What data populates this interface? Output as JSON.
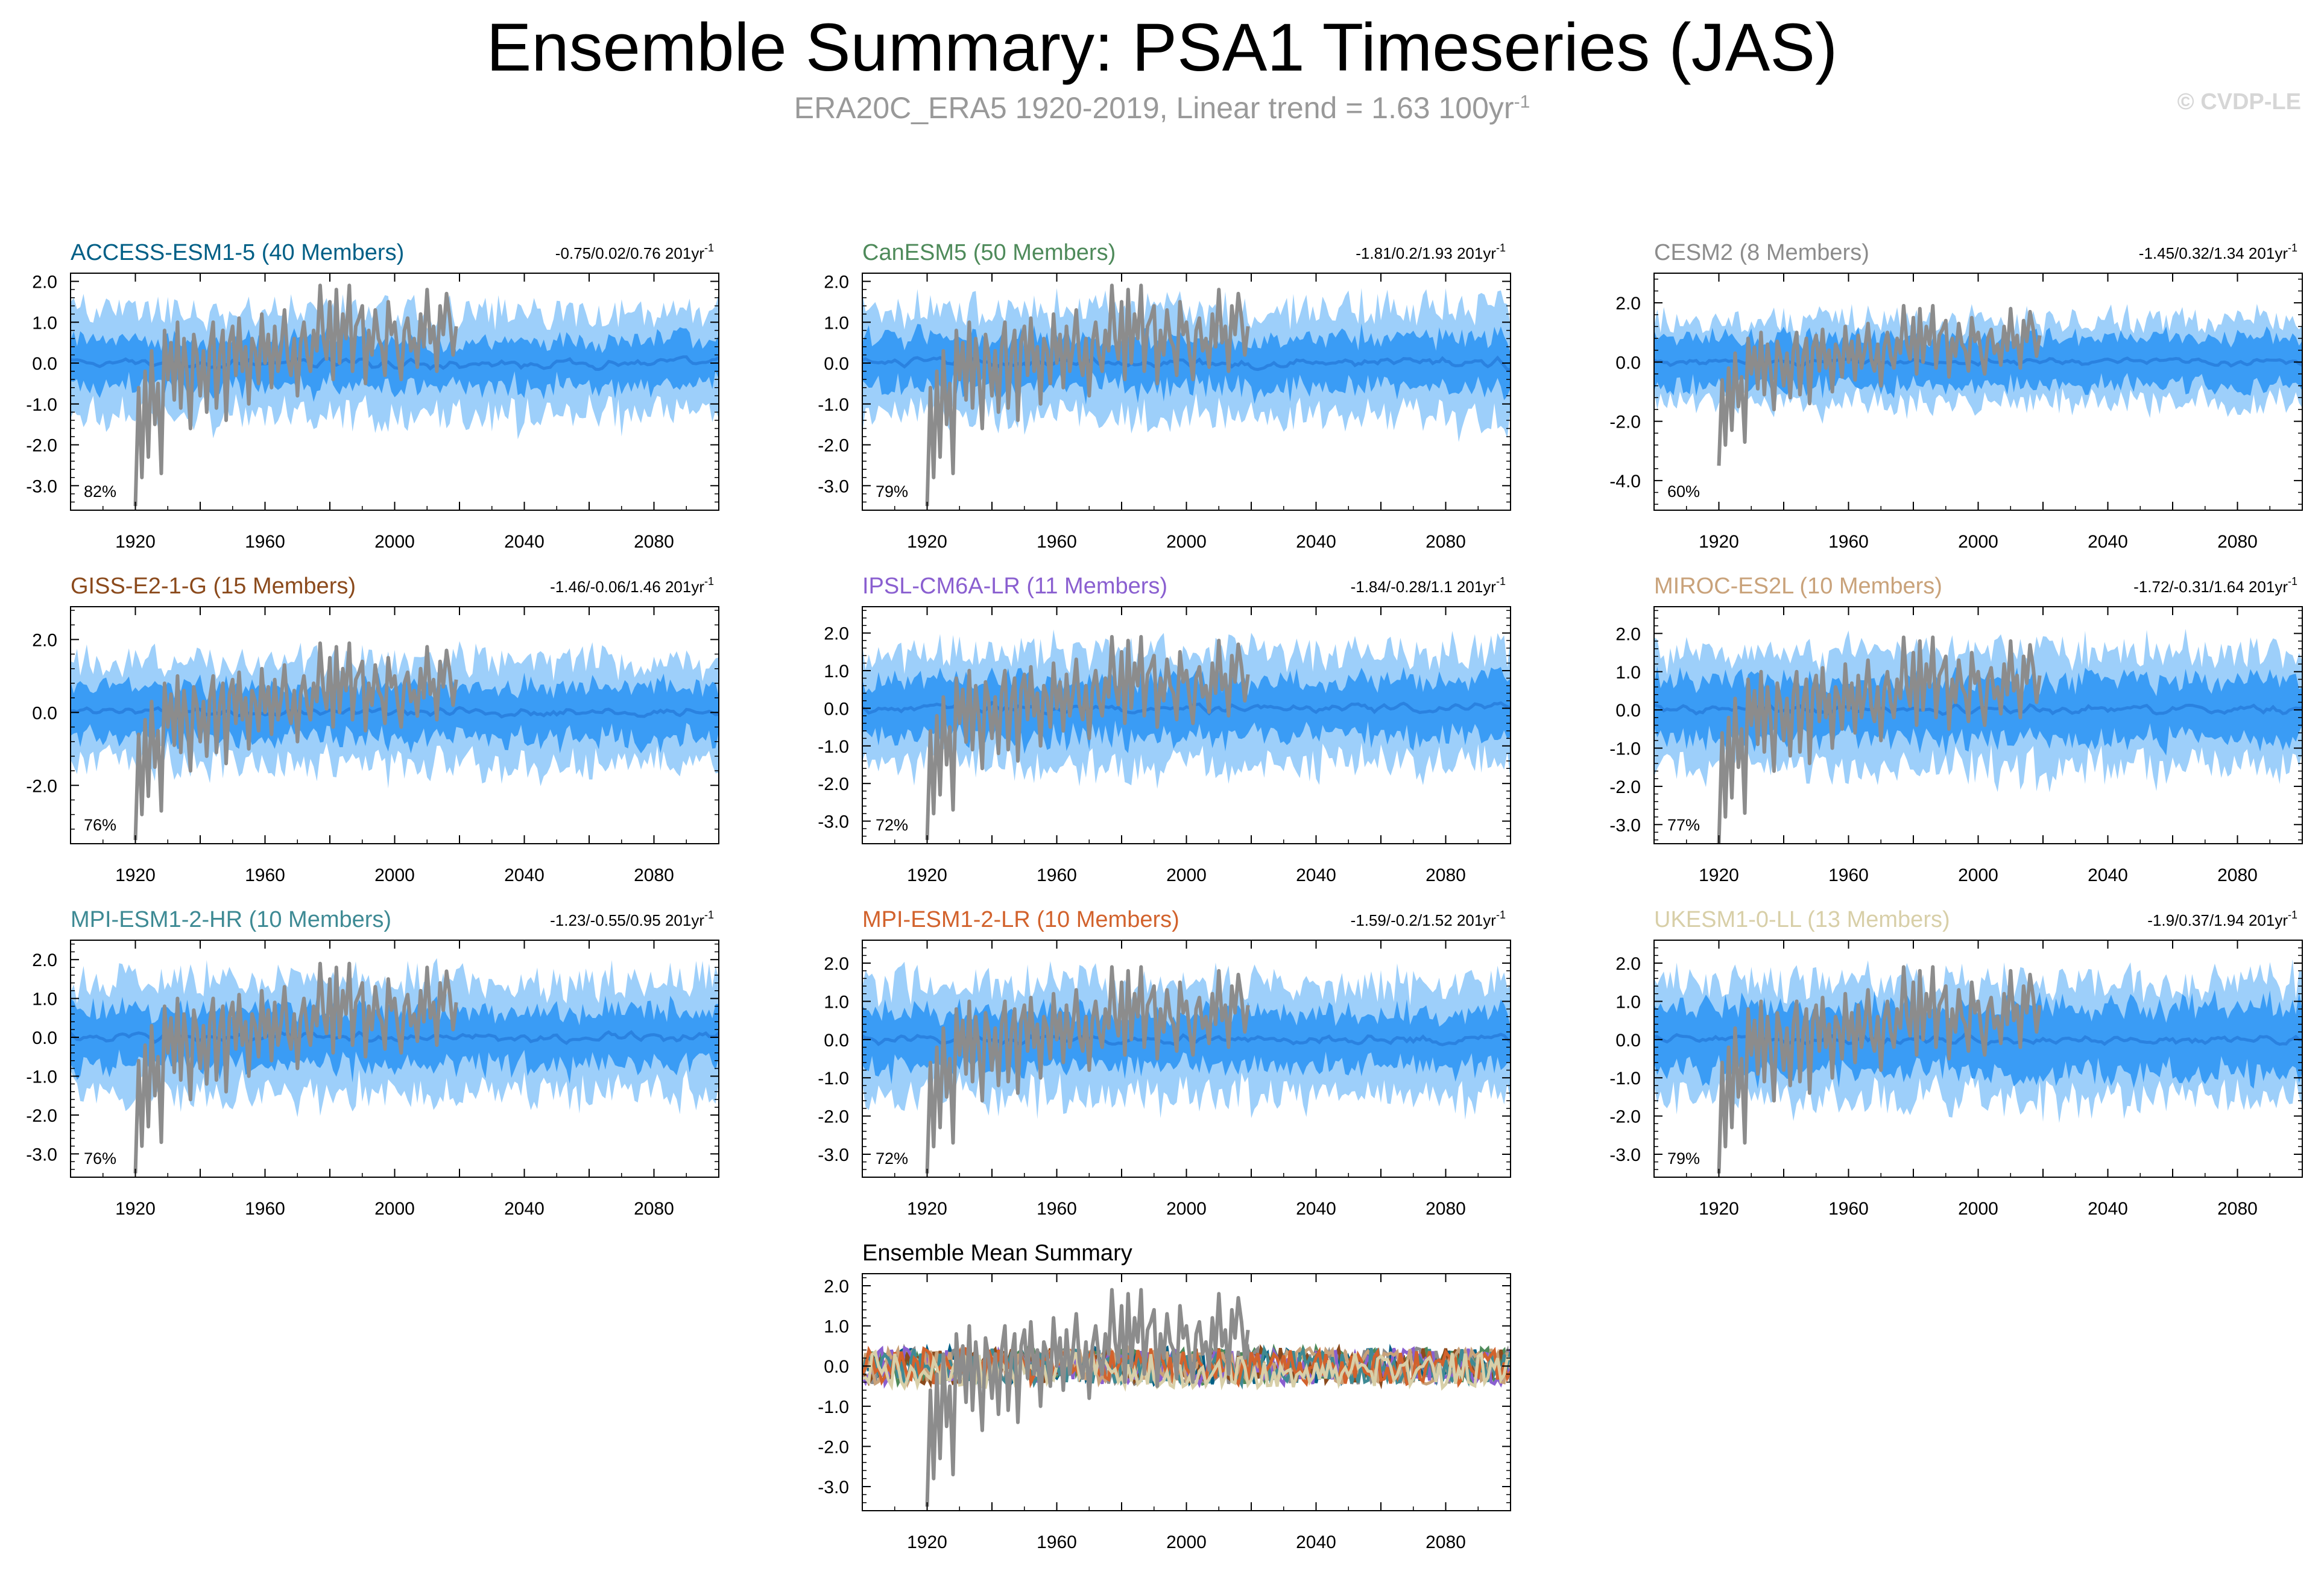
{
  "header": {
    "title": "Ensemble Summary: PSA1 Timeseries (JAS)",
    "subtitle_main": "ERA20C_ERA5 1920-2019, Linear trend = 1.63 100yr",
    "subtitle_exp": "-1",
    "copyright": "© CVDP-LE"
  },
  "colors": {
    "obs": "#8c8c8c",
    "band_outer": "#9dcffa",
    "band_inner": "#3a9cf5",
    "ens_mean": "#2a82e0"
  },
  "chart_data": [
    {
      "type": "area",
      "title": "ACCESS-ESM1-5 (40 Members)",
      "title_color": "#005f86",
      "range": "-0.75/0.02/0.76 201yr",
      "range_exp": "-1",
      "percent": "82%",
      "xlim": [
        1900,
        2100
      ],
      "ylim": [
        -3.6,
        2.2
      ],
      "yticks": [
        2.0,
        1.0,
        0.0,
        -1.0,
        -2.0,
        -3.0
      ],
      "ytick_labels": [
        "2.0",
        "1.0",
        "0.0",
        "-1.0",
        "-2.0",
        "-3.0"
      ],
      "xticks": [
        1920,
        1960,
        2000,
        2040,
        2080
      ],
      "outer_halfwidth": 1.25,
      "inner_halfwidth": 0.55
    },
    {
      "type": "area",
      "title": "CanESM5 (50 Members)",
      "title_color": "#4e8a5a",
      "range": "-1.81/0.2/1.93 201yr",
      "range_exp": "-1",
      "percent": "79%",
      "xlim": [
        1900,
        2100
      ],
      "ylim": [
        -3.6,
        2.2
      ],
      "yticks": [
        2.0,
        1.0,
        0.0,
        -1.0,
        -2.0,
        -3.0
      ],
      "ytick_labels": [
        "2.0",
        "1.0",
        "0.0",
        "-1.0",
        "-2.0",
        "-3.0"
      ],
      "xticks": [
        1920,
        1960,
        2000,
        2040,
        2080
      ],
      "outer_halfwidth": 1.3,
      "inner_halfwidth": 0.6
    },
    {
      "type": "area",
      "title": "CESM2 (8 Members)",
      "title_color": "#8c8c8c",
      "range": "-1.45/0.32/1.34 201yr",
      "range_exp": "-1",
      "percent": "60%",
      "xlim": [
        1900,
        2100
      ],
      "ylim": [
        -5.0,
        3.0
      ],
      "yticks": [
        2.0,
        0.0,
        -2.0,
        -4.0
      ],
      "ytick_labels": [
        "2.0",
        "0.0",
        "-2.0",
        "-4.0"
      ],
      "xticks": [
        1920,
        1960,
        2000,
        2040,
        2080
      ],
      "outer_halfwidth": 1.4,
      "inner_halfwidth": 0.8
    },
    {
      "type": "area",
      "title": "GISS-E2-1-G (15 Members)",
      "title_color": "#8b4a1c",
      "range": "-1.46/-0.06/1.46 201yr",
      "range_exp": "-1",
      "percent": "76%",
      "xlim": [
        1900,
        2100
      ],
      "ylim": [
        -3.6,
        2.9
      ],
      "yticks": [
        2.0,
        0.0,
        -2.0
      ],
      "ytick_labels": [
        "2.0",
        "0.0",
        "-2.0"
      ],
      "xticks": [
        1920,
        1960,
        2000,
        2040,
        2080
      ],
      "outer_halfwidth": 1.4,
      "inner_halfwidth": 0.7
    },
    {
      "type": "area",
      "title": "IPSL-CM6A-LR (11 Members)",
      "title_color": "#8a5fd0",
      "range": "-1.84/-0.28/1.1 201yr",
      "range_exp": "-1",
      "percent": "72%",
      "xlim": [
        1900,
        2100
      ],
      "ylim": [
        -3.6,
        2.7
      ],
      "yticks": [
        2.0,
        1.0,
        0.0,
        -1.0,
        -2.0,
        -3.0
      ],
      "ytick_labels": [
        "2.0",
        "1.0",
        "0.0",
        "-1.0",
        "-2.0",
        "-3.0"
      ],
      "xticks": [
        1920,
        1960,
        2000,
        2040,
        2080
      ],
      "outer_halfwidth": 1.5,
      "inner_halfwidth": 0.75
    },
    {
      "type": "area",
      "title": "MIROC-ES2L (10 Members)",
      "title_color": "#c9a27a",
      "range": "-1.72/-0.31/1.64 201yr",
      "range_exp": "-1",
      "percent": "77%",
      "xlim": [
        1900,
        2100
      ],
      "ylim": [
        -3.5,
        2.7
      ],
      "yticks": [
        2.0,
        1.0,
        0.0,
        -1.0,
        -2.0,
        -3.0
      ],
      "ytick_labels": [
        "2.0",
        "1.0",
        "0.0",
        "-1.0",
        "-2.0",
        "-3.0"
      ],
      "xticks": [
        1920,
        1960,
        2000,
        2040,
        2080
      ],
      "outer_halfwidth": 1.5,
      "inner_halfwidth": 0.75
    },
    {
      "type": "area",
      "title": "MPI-ESM1-2-HR (10 Members)",
      "title_color": "#3e8a94",
      "range": "-1.23/-0.55/0.95 201yr",
      "range_exp": "-1",
      "percent": "76%",
      "xlim": [
        1900,
        2100
      ],
      "ylim": [
        -3.6,
        2.5
      ],
      "yticks": [
        2.0,
        1.0,
        0.0,
        -1.0,
        -2.0,
        -3.0
      ],
      "ytick_labels": [
        "2.0",
        "1.0",
        "0.0",
        "-1.0",
        "-2.0",
        "-3.0"
      ],
      "xticks": [
        1920,
        1960,
        2000,
        2040,
        2080
      ],
      "outer_halfwidth": 1.45,
      "inner_halfwidth": 0.7
    },
    {
      "type": "area",
      "title": "MPI-ESM1-2-LR (10 Members)",
      "title_color": "#d2622c",
      "range": "-1.59/-0.2/1.52 201yr",
      "range_exp": "-1",
      "percent": "72%",
      "xlim": [
        1900,
        2100
      ],
      "ylim": [
        -3.6,
        2.6
      ],
      "yticks": [
        2.0,
        1.0,
        0.0,
        -1.0,
        -2.0,
        -3.0
      ],
      "ytick_labels": [
        "2.0",
        "1.0",
        "0.0",
        "-1.0",
        "-2.0",
        "-3.0"
      ],
      "xticks": [
        1920,
        1960,
        2000,
        2040,
        2080
      ],
      "outer_halfwidth": 1.45,
      "inner_halfwidth": 0.7
    },
    {
      "type": "area",
      "title": "UKESM1-0-LL (13 Members)",
      "title_color": "#d8cfa8",
      "range": "-1.9/0.37/1.94 201yr",
      "range_exp": "-1",
      "percent": "79%",
      "xlim": [
        1900,
        2100
      ],
      "ylim": [
        -3.6,
        2.6
      ],
      "yticks": [
        2.0,
        1.0,
        0.0,
        -1.0,
        -2.0,
        -3.0
      ],
      "ytick_labels": [
        "2.0",
        "1.0",
        "0.0",
        "-1.0",
        "-2.0",
        "-3.0"
      ],
      "xticks": [
        1920,
        1960,
        2000,
        2040,
        2080
      ],
      "outer_halfwidth": 1.5,
      "inner_halfwidth": 0.85
    },
    {
      "type": "line",
      "title": "Ensemble Mean Summary",
      "title_color": "#000000",
      "range": "",
      "range_exp": "",
      "percent": "",
      "xlim": [
        1900,
        2100
      ],
      "ylim": [
        -3.6,
        2.3
      ],
      "yticks": [
        2.0,
        1.0,
        0.0,
        -1.0,
        -2.0,
        -3.0
      ],
      "ytick_labels": [
        "2.0",
        "1.0",
        "0.0",
        "-1.0",
        "-2.0",
        "-3.0"
      ],
      "xticks": [
        1920,
        1960,
        2000,
        2040,
        2080
      ],
      "series_colors": [
        "#005f86",
        "#4e8a5a",
        "#8c8c8c",
        "#8b4a1c",
        "#8a5fd0",
        "#c9a27a",
        "#3e8a94",
        "#d2622c",
        "#d8cfa8"
      ]
    }
  ],
  "observations": {
    "name": "ERA20C_ERA5",
    "years": [
      1920,
      2019
    ],
    "x": [
      1920,
      1921,
      1922,
      1923,
      1924,
      1925,
      1926,
      1927,
      1928,
      1929,
      1930,
      1931,
      1932,
      1933,
      1934,
      1935,
      1936,
      1937,
      1938,
      1939,
      1940,
      1941,
      1942,
      1943,
      1944,
      1945,
      1946,
      1947,
      1948,
      1949,
      1950,
      1951,
      1952,
      1953,
      1954,
      1955,
      1956,
      1957,
      1958,
      1959,
      1960,
      1961,
      1962,
      1963,
      1964,
      1965,
      1966,
      1967,
      1968,
      1969,
      1970,
      1971,
      1972,
      1973,
      1974,
      1975,
      1976,
      1977,
      1978,
      1979,
      1980,
      1981,
      1982,
      1983,
      1984,
      1985,
      1986,
      1987,
      1988,
      1989,
      1990,
      1991,
      1992,
      1993,
      1994,
      1995,
      1996,
      1997,
      1998,
      1999,
      2000,
      2001,
      2002,
      2003,
      2004,
      2005,
      2006,
      2007,
      2008,
      2009,
      2010,
      2011,
      2012,
      2013,
      2014,
      2015,
      2016,
      2017,
      2018,
      2019
    ],
    "y": [
      -3.5,
      -0.6,
      -2.8,
      -0.2,
      -2.3,
      0.3,
      -1.5,
      -0.5,
      -2.7,
      0.8,
      -0.4,
      0.5,
      -0.9,
      1.0,
      -1.1,
      0.6,
      -0.3,
      -1.6,
      0.7,
      0.2,
      -0.8,
      0.3,
      -1.2,
      0.4,
      1.0,
      -1.1,
      0.2,
      0.8,
      -1.4,
      0.5,
      0.9,
      -0.3,
      1.1,
      -0.2,
      0.4,
      -1.0,
      0.6,
      0.3,
      -0.5,
      1.2,
      0.0,
      0.7,
      -0.6,
      0.9,
      -0.2,
      0.4,
      1.3,
      0.1,
      -0.3,
      0.6,
      -0.8,
      0.5,
      1.0,
      0.2,
      -0.2,
      0.8,
      0.3,
      1.9,
      0.6,
      0.1,
      1.5,
      -0.4,
      1.8,
      0.0,
      1.2,
      0.6,
      1.9,
      -0.2,
      0.9,
      1.1,
      1.4,
      -0.5,
      0.8,
      0.2,
      1.3,
      0.6,
      0.4,
      -0.3,
      1.5,
      0.7,
      1.0,
      0.2,
      -0.4,
      0.8,
      1.1,
      0.3,
      0.6,
      -0.1,
      1.2,
      0.4,
      1.8,
      0.5,
      0.9,
      -0.2,
      1.4,
      0.7,
      1.7,
      1.1,
      0.2,
      0.9
    ]
  }
}
